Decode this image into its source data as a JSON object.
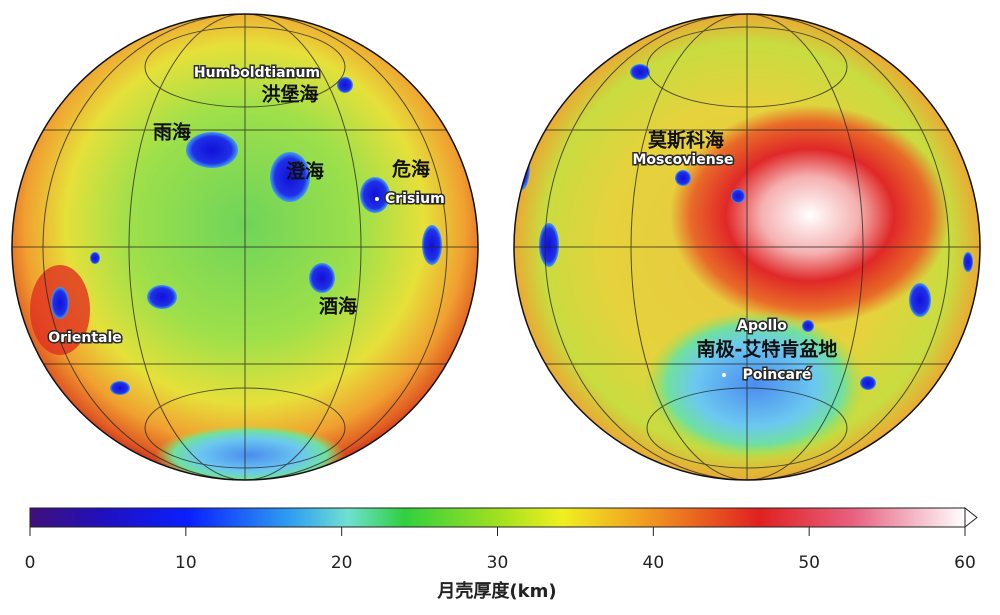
{
  "maps": [
    {
      "labels": [
        "Humboldtianum",
        "洪堡海",
        "雨海",
        "澄海",
        "危海",
        "Crisium",
        "酒海",
        "Orientale"
      ]
    },
    {
      "labels": [
        "莫斯科海",
        "Moscoviense",
        "Apollo",
        "南极-艾特肯盆地",
        "Poincaré"
      ]
    }
  ],
  "colorbar": {
    "label": "月壳厚度(km)",
    "range": [
      0,
      60
    ],
    "ticks": [
      0,
      10,
      20,
      30,
      40,
      50,
      60
    ]
  }
}
